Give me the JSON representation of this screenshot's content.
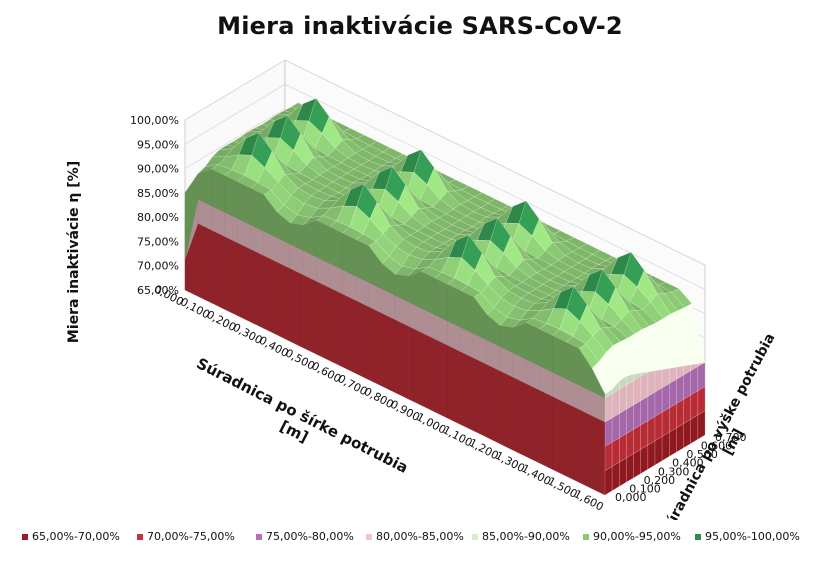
{
  "chart_data": {
    "type": "surface",
    "title": "Miera inaktivácie SARS-CoV-2",
    "zlabel": "Miera inaktivácie η [%]",
    "xlabel": "Súradnica po šírke potrubia [m]",
    "ylabel": "Súradnica po výške potrubia [m]",
    "z_ticks": [
      "65,00%",
      "70,00%",
      "75,00%",
      "80,00%",
      "85,00%",
      "90,00%",
      "95,00%",
      "100,00%"
    ],
    "zlim": [
      65,
      100
    ],
    "x_ticks": [
      "0,000",
      "0,100",
      "0,200",
      "0,300",
      "0,400",
      "0,500",
      "0,600",
      "0,700",
      "0,800",
      "0,900",
      "1,000",
      "1,100",
      "1,200",
      "1,300",
      "1,400",
      "1,500",
      "1,600"
    ],
    "xlim": [
      0,
      1.6
    ],
    "y_ticks": [
      "0,000",
      "0,100",
      "0,200",
      "0,300",
      "0,400",
      "0,500",
      "0,600",
      "0,700"
    ],
    "ylim": [
      0,
      0.7
    ],
    "peaks": [
      {
        "x": 0.2,
        "y": 0.15,
        "z": 100
      },
      {
        "x": 0.6,
        "y": 0.15,
        "z": 100
      },
      {
        "x": 1.0,
        "y": 0.15,
        "z": 100
      },
      {
        "x": 1.4,
        "y": 0.15,
        "z": 100
      },
      {
        "x": 0.2,
        "y": 0.35,
        "z": 100
      },
      {
        "x": 0.6,
        "y": 0.35,
        "z": 100
      },
      {
        "x": 1.0,
        "y": 0.35,
        "z": 100
      },
      {
        "x": 1.4,
        "y": 0.35,
        "z": 100
      },
      {
        "x": 0.2,
        "y": 0.55,
        "z": 100
      },
      {
        "x": 0.6,
        "y": 0.55,
        "z": 100
      },
      {
        "x": 1.0,
        "y": 0.55,
        "z": 100
      },
      {
        "x": 1.4,
        "y": 0.55,
        "z": 100
      }
    ],
    "legend": [
      {
        "label": "65,00%-70,00%",
        "color": "#9b1b22"
      },
      {
        "label": "70,00%-75,00%",
        "color": "#c8303a"
      },
      {
        "label": "75,00%-80,00%",
        "color": "#b370b8"
      },
      {
        "label": "80,00%-85,00%",
        "color": "#f2c4cc"
      },
      {
        "label": "85,00%-90,00%",
        "color": "#d8ecd0"
      },
      {
        "label": "90,00%-95,00%",
        "color": "#8ccb74"
      },
      {
        "label": "95,00%-100,00%",
        "color": "#2e8b4a"
      }
    ],
    "legend_position": "bottom"
  }
}
